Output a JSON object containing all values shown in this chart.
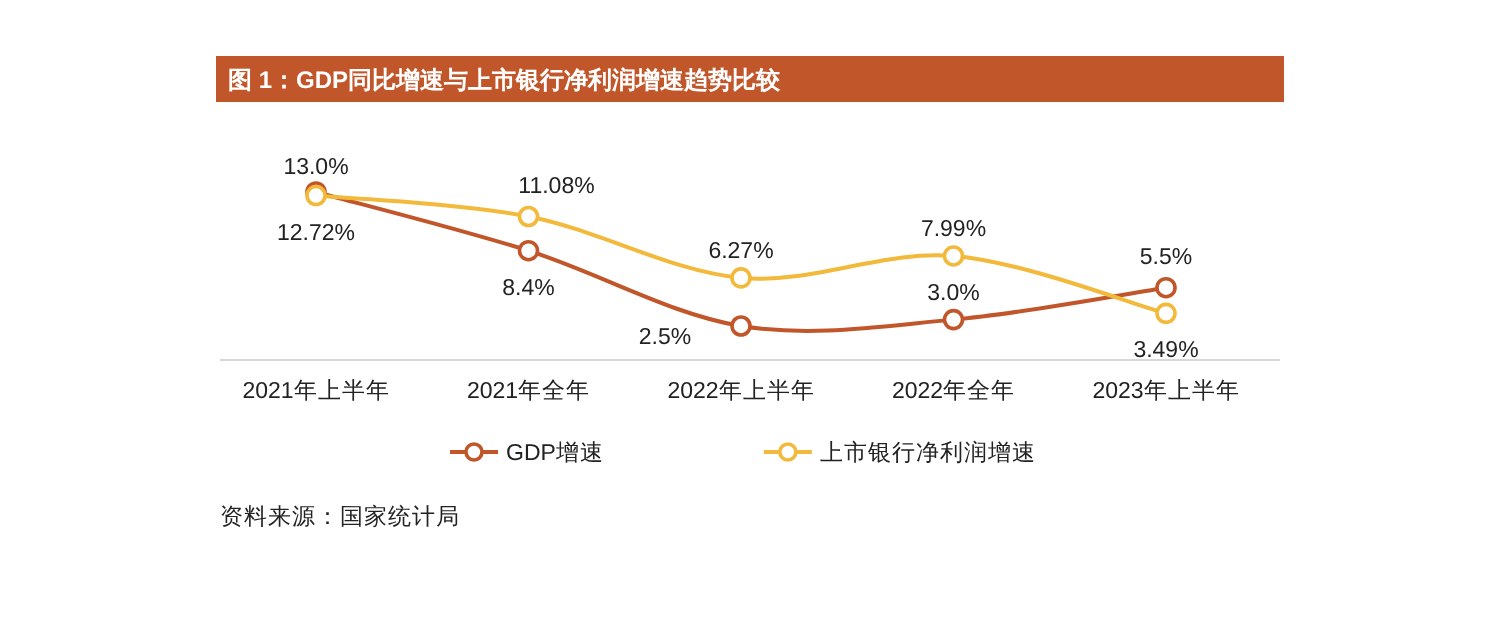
{
  "chart_data": {
    "type": "line",
    "title": "图 1：GDP同比增速与上市银行净利润增速趋势比较",
    "categories": [
      "2021年上半年",
      "2021年全年",
      "2022年上半年",
      "2022年全年",
      "2023年上半年"
    ],
    "series": [
      {
        "name": "GDP增速",
        "color": "#c0562a",
        "values": [
          13.0,
          8.4,
          2.5,
          3.0,
          5.5
        ],
        "value_labels": [
          "13.0%",
          "8.4%",
          "2.5%",
          "3.0%",
          "5.5%"
        ]
      },
      {
        "name": "上市银行净利润增速",
        "color": "#f2b93b",
        "values": [
          12.72,
          11.08,
          6.27,
          7.99,
          3.49
        ],
        "value_labels": [
          "12.72%",
          "11.08%",
          "6.27%",
          "7.99%",
          "3.49%"
        ]
      }
    ],
    "annotations": [
      "资料来源：国家统计局"
    ],
    "legend": "bottom",
    "marker": "circle",
    "line_style": "solid"
  }
}
